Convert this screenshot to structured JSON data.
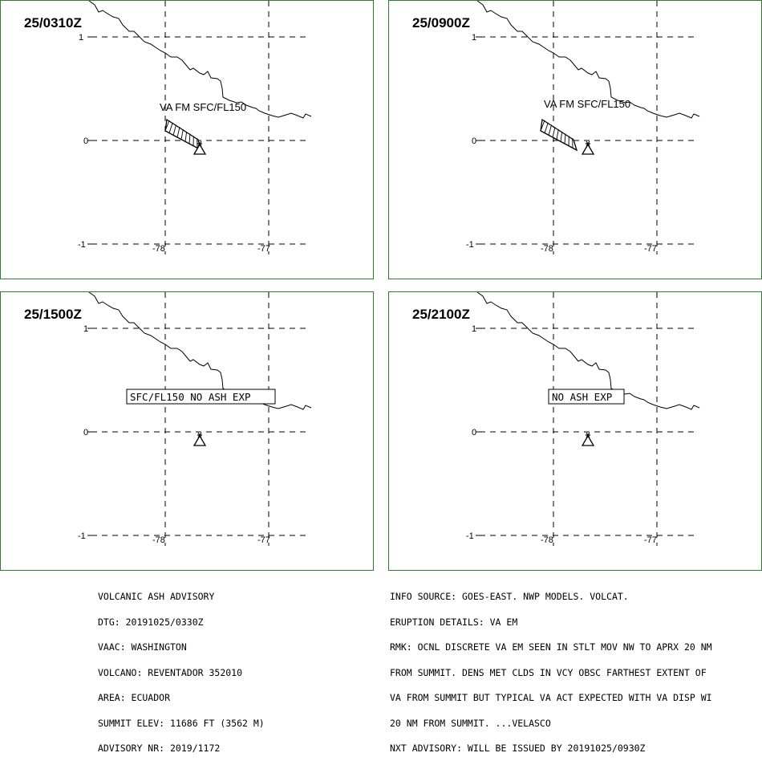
{
  "panels": [
    {
      "id": "p1",
      "time": "25/0310Z",
      "ash_label": "VA FM SFC/FL150",
      "box_label": ""
    },
    {
      "id": "p2",
      "time": "25/0900Z",
      "ash_label": "VA FM SFC/FL150",
      "box_label": ""
    },
    {
      "id": "p3",
      "time": "25/1500Z",
      "ash_label": "",
      "box_label": "SFC/FL150 NO ASH EXP"
    },
    {
      "id": "p4",
      "time": "25/2100Z",
      "ash_label": "",
      "box_label": "NO ASH EXP"
    }
  ],
  "grid_labels": {
    "lat_top": "1",
    "lat_mid": "0",
    "lat_bot": "-1",
    "lon_left": "-78",
    "lon_right": "-77"
  },
  "advisory_left": {
    "line1": "VOLCANIC ASH ADVISORY",
    "line2": "DTG: 20191025/0330Z",
    "line3": "VAAC: WASHINGTON",
    "line4": "VOLCANO: REVENTADOR 352010",
    "line5": "AREA: ECUADOR",
    "line6": "SUMMIT ELEV: 11686 FT (3562 M)",
    "line7": "ADVISORY NR: 2019/1172"
  },
  "advisory_right": {
    "line1": "INFO SOURCE: GOES-EAST. NWP MODELS. VOLCAT.",
    "line2": "ERUPTION DETAILS: VA EM",
    "line3": "RMK: OCNL DISCRETE VA EM SEEN IN STLT MOV NW TO APRX 20 NM",
    "line4": "FROM SUMMIT. DENS MET CLDS IN VCY OBSC FARTHEST EXTENT OF",
    "line5": "VA FROM SUMMIT BUT TYPICAL VA ACT EXPECTED WITH VA DISP WI",
    "line6": "20 NM FROM SUMMIT. ...VELASCO",
    "line7": "NXT ADVISORY: WILL BE ISSUED BY 20191025/0930Z"
  },
  "colors": {
    "frame": "#2f7d2f",
    "ink": "#000000"
  }
}
